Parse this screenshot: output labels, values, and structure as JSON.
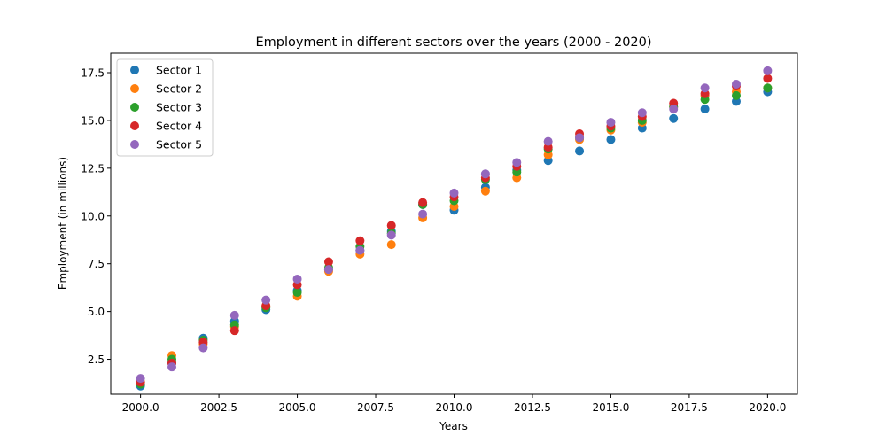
{
  "chart_data": {
    "type": "scatter",
    "title": "Employment in different sectors over the years (2000 - 2020)",
    "xlabel": "Years",
    "ylabel": "Employment (in millions)",
    "xlim": [
      1999.05,
      2020.95
    ],
    "ylim": [
      0.67,
      18.52
    ],
    "x_ticks": [
      2000.0,
      2002.5,
      2005.0,
      2007.5,
      2010.0,
      2012.5,
      2015.0,
      2017.5,
      2020.0
    ],
    "x_tick_labels": [
      "2000.0",
      "2002.5",
      "2005.0",
      "2007.5",
      "2010.0",
      "2012.5",
      "2015.0",
      "2017.5",
      "2020.0"
    ],
    "y_ticks": [
      2.5,
      5.0,
      7.5,
      10.0,
      12.5,
      15.0,
      17.5
    ],
    "y_tick_labels": [
      "2.5",
      "5.0",
      "7.5",
      "10.0",
      "12.5",
      "15.0",
      "17.5"
    ],
    "grid": false,
    "legend_position": "top-left",
    "x": [
      2000,
      2001,
      2002,
      2003,
      2004,
      2005,
      2006,
      2007,
      2008,
      2009,
      2010,
      2011,
      2012,
      2013,
      2014,
      2015,
      2016,
      2017,
      2018,
      2019,
      2020
    ],
    "series": [
      {
        "name": "Sector 1",
        "color": "#1f77b4",
        "values": [
          1.1,
          2.3,
          3.6,
          4.5,
          5.1,
          6.1,
          7.2,
          8.2,
          9.2,
          10.6,
          10.3,
          11.5,
          12.4,
          12.9,
          13.4,
          14.0,
          14.6,
          15.1,
          15.6,
          16.0,
          16.5
        ]
      },
      {
        "name": "Sector 2",
        "color": "#ff7f0e",
        "values": [
          1.3,
          2.7,
          3.3,
          4.2,
          5.3,
          5.8,
          7.1,
          8.0,
          8.5,
          9.9,
          10.5,
          11.3,
          12.0,
          13.2,
          14.0,
          14.5,
          14.9,
          15.7,
          16.3,
          16.5,
          16.7
        ]
      },
      {
        "name": "Sector 3",
        "color": "#2ca02c",
        "values": [
          1.2,
          2.5,
          3.5,
          4.3,
          5.2,
          6.0,
          7.3,
          8.4,
          9.1,
          10.6,
          10.8,
          11.9,
          12.3,
          13.5,
          14.1,
          14.6,
          15.0,
          15.7,
          16.1,
          16.3,
          16.7
        ]
      },
      {
        "name": "Sector 4",
        "color": "#d62728",
        "values": [
          1.3,
          2.3,
          3.4,
          4.0,
          5.3,
          6.4,
          7.6,
          8.7,
          9.5,
          10.7,
          11.0,
          12.0,
          12.6,
          13.6,
          14.3,
          14.7,
          15.2,
          15.9,
          16.4,
          16.8,
          17.2
        ]
      },
      {
        "name": "Sector 5",
        "color": "#9467bd",
        "values": [
          1.5,
          2.1,
          3.1,
          4.8,
          5.6,
          6.7,
          7.2,
          8.2,
          9.0,
          10.1,
          11.2,
          12.2,
          12.8,
          13.9,
          14.1,
          14.9,
          15.4,
          15.6,
          16.7,
          16.9,
          17.6
        ]
      }
    ]
  }
}
